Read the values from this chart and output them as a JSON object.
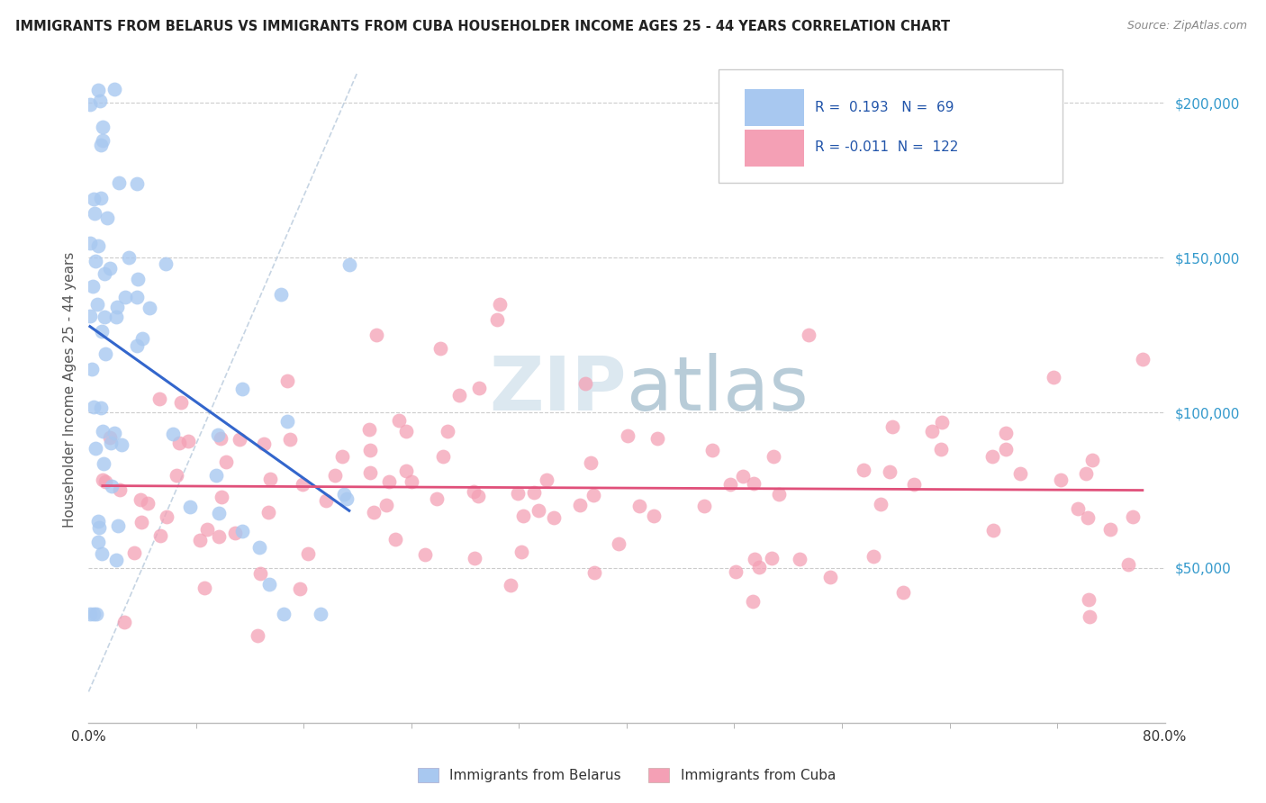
{
  "title": "IMMIGRANTS FROM BELARUS VS IMMIGRANTS FROM CUBA HOUSEHOLDER INCOME AGES 25 - 44 YEARS CORRELATION CHART",
  "source": "Source: ZipAtlas.com",
  "ylabel": "Householder Income Ages 25 - 44 years",
  "xlim": [
    0.0,
    80.0
  ],
  "ylim": [
    0,
    215000
  ],
  "yticks": [
    50000,
    100000,
    150000,
    200000
  ],
  "ytick_labels": [
    "$50,000",
    "$100,000",
    "$150,000",
    "$200,000"
  ],
  "R_belarus": 0.193,
  "N_belarus": 69,
  "R_cuba": -0.011,
  "N_cuba": 122,
  "color_belarus": "#a8c8f0",
  "color_cuba": "#f4a0b5",
  "color_trend_belarus": "#3366cc",
  "color_trend_cuba": "#e0507a",
  "watermark_color": "#dce8f0"
}
